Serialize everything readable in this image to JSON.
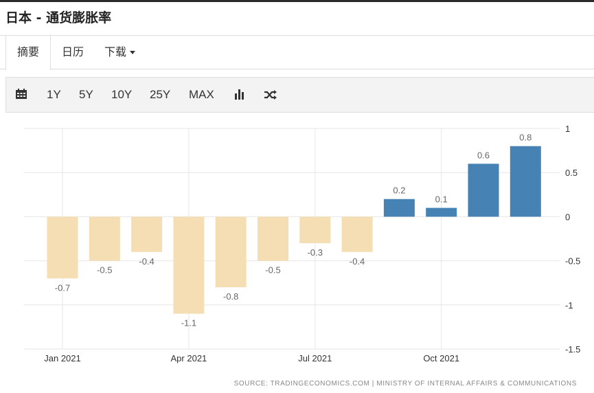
{
  "page": {
    "title": "日本 - 通货膨胀率"
  },
  "tabs": [
    {
      "label": "摘要"
    },
    {
      "label": "日历"
    },
    {
      "label": "下载"
    }
  ],
  "toolbar": {
    "calendar_icon": "calendar-icon",
    "ranges": [
      "1Y",
      "5Y",
      "10Y",
      "25Y",
      "MAX"
    ],
    "bar_chart_icon": "bar-chart-icon",
    "shuffle_icon": "shuffle-icon"
  },
  "colors": {
    "positive": "#4682b4",
    "negative": "#f5deb3"
  },
  "chart_data": {
    "type": "bar",
    "categories": [
      "Jan 2021",
      "Feb 2021",
      "Mar 2021",
      "Apr 2021",
      "May 2021",
      "Jun 2021",
      "Jul 2021",
      "Aug 2021",
      "Sep 2021",
      "Oct 2021",
      "Nov 2021",
      "Dec 2021"
    ],
    "values": [
      -0.7,
      -0.5,
      -0.4,
      -1.1,
      -0.8,
      -0.5,
      -0.3,
      -0.4,
      0.2,
      0.1,
      0.6,
      0.8
    ],
    "x_tick_labels": [
      "Jan 2021",
      "Apr 2021",
      "Jul 2021",
      "Oct 2021"
    ],
    "y_ticks": [
      1,
      0.5,
      0,
      -0.5,
      -1,
      -1.5
    ],
    "ylim": [
      -1.5,
      1
    ],
    "y_axis_side": "right",
    "grid": true,
    "source": "SOURCE: TRADINGECONOMICS.COM | MINISTRY OF INTERNAL AFFAIRS & COMMUNICATIONS"
  }
}
